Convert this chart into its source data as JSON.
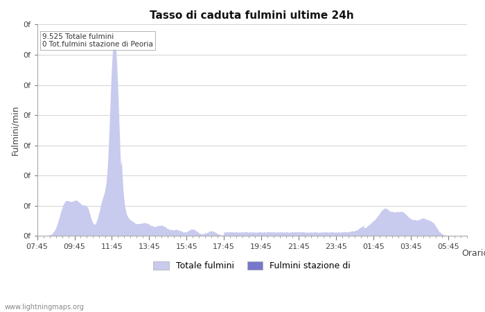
{
  "title": "Tasso di caduta fulmini ultime 24h",
  "xlabel": "Orario",
  "ylabel": "Fulmini/min",
  "annotation_line1": "9.525 Totale fulmini",
  "annotation_line2": "0 Tot.fulmini stazione di Peoria",
  "watermark": "www.lightningmaps.org",
  "legend_label1": "Totale fulmini",
  "legend_label2": "Fulmini stazione di",
  "fill_color1": "#c8caee",
  "fill_color2": "#7777cc",
  "ytick_label": "0f",
  "xtick_labels": [
    "07:45",
    "09:45",
    "11:45",
    "13:45",
    "15:45",
    "17:45",
    "19:45",
    "21:45",
    "23:45",
    "01:45",
    "03:45",
    "05:45"
  ],
  "title_fontsize": 11,
  "axis_fontsize": 8,
  "fig_width": 7.0,
  "fig_height": 4.5,
  "dpi": 100
}
